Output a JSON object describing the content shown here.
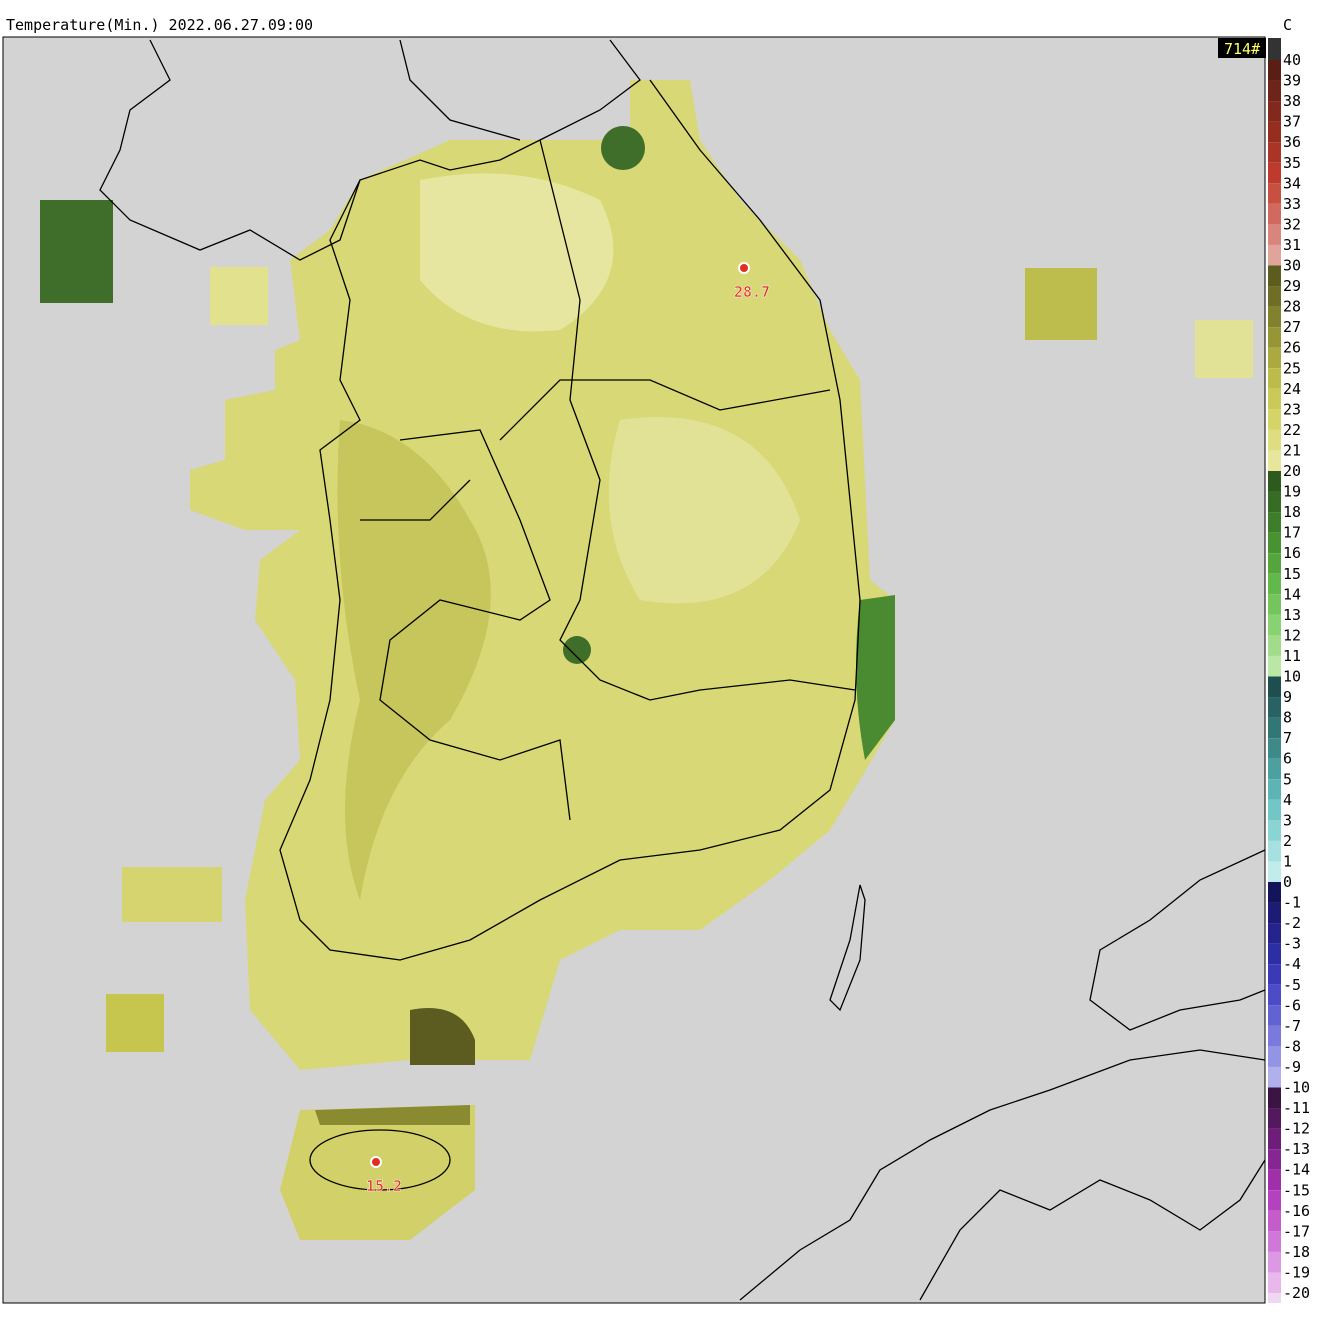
{
  "title": "Temperature(Min.) 2022.06.27.09:00",
  "unit": "C",
  "badge": "714#",
  "legend": {
    "labels": [
      40,
      39,
      38,
      37,
      36,
      35,
      34,
      33,
      32,
      31,
      30,
      29,
      28,
      27,
      26,
      25,
      24,
      23,
      22,
      21,
      20,
      19,
      18,
      17,
      16,
      15,
      14,
      13,
      12,
      11,
      10,
      9,
      8,
      7,
      6,
      5,
      4,
      3,
      2,
      1,
      0,
      -1,
      -2,
      -3,
      -4,
      -5,
      -6,
      -7,
      -8,
      -9,
      -10,
      -11,
      -12,
      -13,
      -14,
      -15,
      -16,
      -17,
      -18,
      -19,
      -20
    ],
    "colors": [
      "#5a1e14",
      "#6e2418",
      "#82281c",
      "#962e20",
      "#aa3426",
      "#be3a2c",
      "#c85040",
      "#d06a5e",
      "#d8867c",
      "#e0a49c",
      "#5c5c1e",
      "#6e6e26",
      "#82822e",
      "#969636",
      "#aaaa40",
      "#bcbc4a",
      "#caca58",
      "#d4d468",
      "#dede80",
      "#e6e69c",
      "#2e5a1e",
      "#366c24",
      "#3e7e2a",
      "#489232",
      "#54a63c",
      "#62b84a",
      "#74c65c",
      "#88d272",
      "#a0dc8a",
      "#bae6a6",
      "#1e4e4e",
      "#286262",
      "#327676",
      "#3e8a8a",
      "#4ca0a0",
      "#5cb4b4",
      "#72c6c6",
      "#8ad4d4",
      "#a6e0e0",
      "#c2ecec",
      "#14145a",
      "#1c1c74",
      "#24248c",
      "#2e2ea4",
      "#3a3ab8",
      "#4c4cc8",
      "#6262d2",
      "#7a7adc",
      "#9494e4",
      "#b0b0ec",
      "#3c1444",
      "#54185e",
      "#6c1e78",
      "#862692",
      "#a030aa",
      "#b442be",
      "#c45ccc",
      "#d078d8",
      "#dc98e2",
      "#e8b8ec",
      "#f0d8f0"
    ]
  },
  "markers": [
    {
      "label": "28.7"
    },
    {
      "label": "15.2"
    }
  ]
}
